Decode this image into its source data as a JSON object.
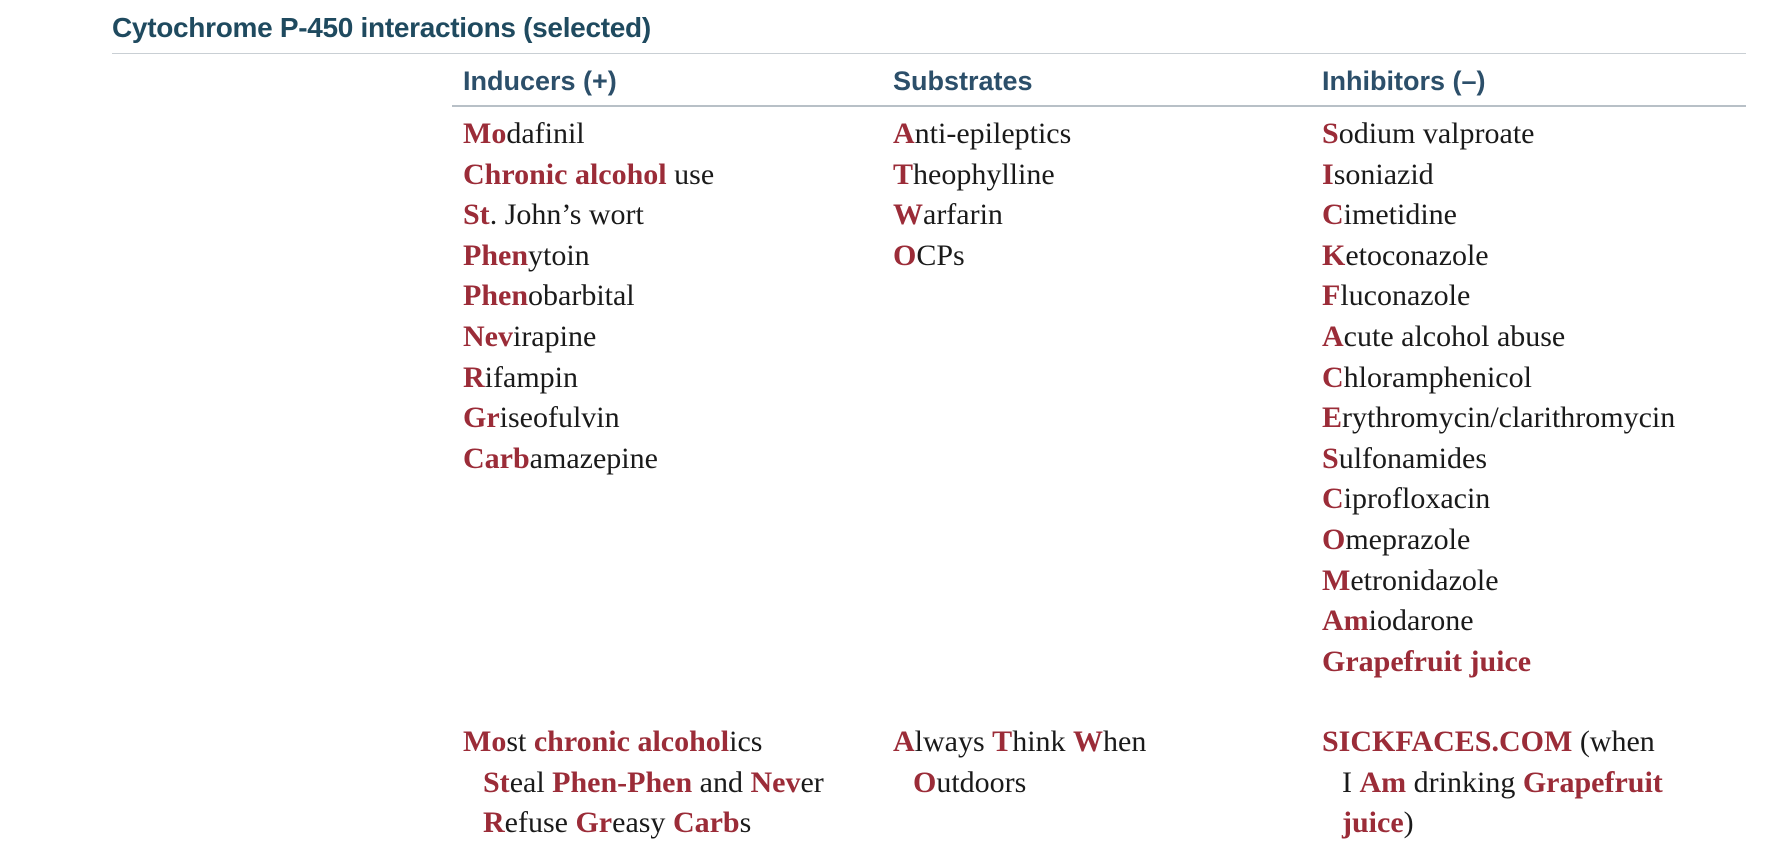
{
  "title": "Cytochrome P-450 interactions (selected)",
  "columns": [
    {
      "key": "inducers",
      "header": "Inducers (+)",
      "items": [
        [
          {
            "t": "Mo",
            "h": true
          },
          {
            "t": "dafinil",
            "h": false
          }
        ],
        [
          {
            "t": "Chronic alcohol",
            "h": true
          },
          {
            "t": " use",
            "h": false
          }
        ],
        [
          {
            "t": "St",
            "h": true
          },
          {
            "t": ". John’s wort",
            "h": false
          }
        ],
        [
          {
            "t": "Phen",
            "h": true
          },
          {
            "t": "ytoin",
            "h": false
          }
        ],
        [
          {
            "t": "Phen",
            "h": true
          },
          {
            "t": "obarbital",
            "h": false
          }
        ],
        [
          {
            "t": "Nev",
            "h": true
          },
          {
            "t": "irapine",
            "h": false
          }
        ],
        [
          {
            "t": "R",
            "h": true
          },
          {
            "t": "ifampin",
            "h": false
          }
        ],
        [
          {
            "t": "Gr",
            "h": true
          },
          {
            "t": "iseofulvin",
            "h": false
          }
        ],
        [
          {
            "t": "Carb",
            "h": true
          },
          {
            "t": "amazepine",
            "h": false
          }
        ]
      ],
      "mnemonic": [
        {
          "indent": false,
          "segs": [
            {
              "t": "Mo",
              "h": true
            },
            {
              "t": "st ",
              "h": false
            },
            {
              "t": "chronic alcohol",
              "h": true
            },
            {
              "t": "ics",
              "h": false
            }
          ]
        },
        {
          "indent": true,
          "segs": [
            {
              "t": "St",
              "h": true
            },
            {
              "t": "eal ",
              "h": false
            },
            {
              "t": "Phen-Phen",
              "h": true
            },
            {
              "t": " and ",
              "h": false
            },
            {
              "t": "Nev",
              "h": true
            },
            {
              "t": "er",
              "h": false
            }
          ]
        },
        {
          "indent": true,
          "segs": [
            {
              "t": "R",
              "h": true
            },
            {
              "t": "efuse ",
              "h": false
            },
            {
              "t": "Gr",
              "h": true
            },
            {
              "t": "easy ",
              "h": false
            },
            {
              "t": "Carb",
              "h": true
            },
            {
              "t": "s",
              "h": false
            }
          ]
        }
      ]
    },
    {
      "key": "substrates",
      "header": "Substrates",
      "items": [
        [
          {
            "t": "A",
            "h": true
          },
          {
            "t": "nti-epileptics",
            "h": false
          }
        ],
        [
          {
            "t": "T",
            "h": true
          },
          {
            "t": "heophylline",
            "h": false
          }
        ],
        [
          {
            "t": "W",
            "h": true
          },
          {
            "t": "arfarin",
            "h": false
          }
        ],
        [
          {
            "t": "O",
            "h": true
          },
          {
            "t": "CPs",
            "h": false
          }
        ]
      ],
      "mnemonic": [
        {
          "indent": false,
          "segs": [
            {
              "t": "A",
              "h": true
            },
            {
              "t": "lways ",
              "h": false
            },
            {
              "t": "T",
              "h": true
            },
            {
              "t": "hink ",
              "h": false
            },
            {
              "t": "W",
              "h": true
            },
            {
              "t": "hen",
              "h": false
            }
          ]
        },
        {
          "indent": true,
          "segs": [
            {
              "t": "O",
              "h": true
            },
            {
              "t": "utdoors",
              "h": false
            }
          ]
        }
      ]
    },
    {
      "key": "inhibitors",
      "header": "Inhibitors (–)",
      "items": [
        [
          {
            "t": "S",
            "h": true
          },
          {
            "t": "odium valproate",
            "h": false
          }
        ],
        [
          {
            "t": "I",
            "h": true
          },
          {
            "t": "soniazid",
            "h": false
          }
        ],
        [
          {
            "t": "C",
            "h": true
          },
          {
            "t": "imetidine",
            "h": false
          }
        ],
        [
          {
            "t": "K",
            "h": true
          },
          {
            "t": "etoconazole",
            "h": false
          }
        ],
        [
          {
            "t": "F",
            "h": true
          },
          {
            "t": "luconazole",
            "h": false
          }
        ],
        [
          {
            "t": "A",
            "h": true
          },
          {
            "t": "cute alcohol abuse",
            "h": false
          }
        ],
        [
          {
            "t": "C",
            "h": true
          },
          {
            "t": "hloramphenicol",
            "h": false
          }
        ],
        [
          {
            "t": "E",
            "h": true
          },
          {
            "t": "rythromycin/clarithromycin",
            "h": false
          }
        ],
        [
          {
            "t": "S",
            "h": true
          },
          {
            "t": "ulfonamides",
            "h": false
          }
        ],
        [
          {
            "t": "C",
            "h": true
          },
          {
            "t": "iprofloxacin",
            "h": false
          }
        ],
        [
          {
            "t": "O",
            "h": true
          },
          {
            "t": "meprazole",
            "h": false
          }
        ],
        [
          {
            "t": "M",
            "h": true
          },
          {
            "t": "etronidazole",
            "h": false
          }
        ],
        [
          {
            "t": "Am",
            "h": true
          },
          {
            "t": "iodarone",
            "h": false
          }
        ],
        [
          {
            "t": "Grapefruit juice",
            "h": true
          }
        ]
      ],
      "mnemonic": [
        {
          "indent": false,
          "segs": [
            {
              "t": "SICKFACES.COM",
              "h": true
            },
            {
              "t": " (when",
              "h": false
            }
          ]
        },
        {
          "indent": true,
          "segs": [
            {
              "t": "I ",
              "h": false
            },
            {
              "t": "Am",
              "h": true
            },
            {
              "t": " drinking ",
              "h": false
            },
            {
              "t": "Grapefruit",
              "h": true
            }
          ]
        },
        {
          "indent": true,
          "segs": [
            {
              "t": "juice",
              "h": true
            },
            {
              "t": ")",
              "h": false
            }
          ]
        }
      ]
    }
  ]
}
